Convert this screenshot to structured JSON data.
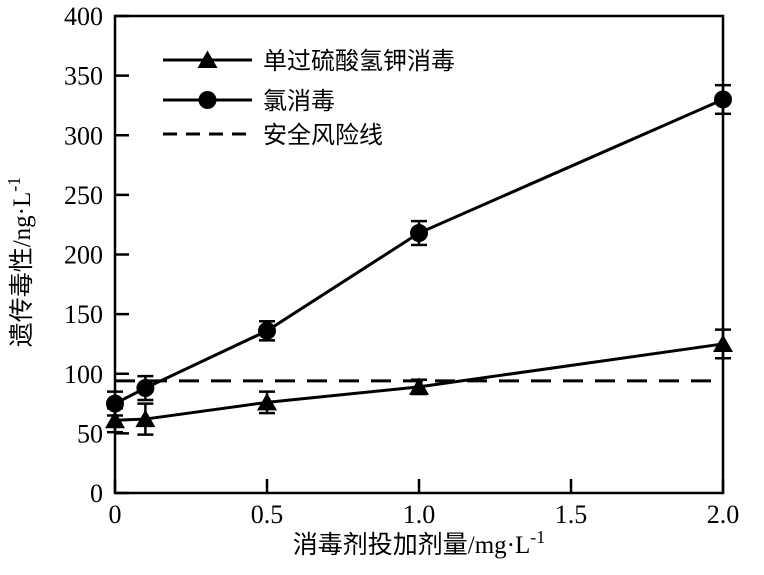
{
  "chart_data": {
    "type": "line",
    "title": "",
    "xlabel": {
      "text": "消毒剂投加剂量/mg·L",
      "superscript": "-1"
    },
    "ylabel": {
      "text": "遗传毒性/ng·L",
      "superscript": "-1"
    },
    "xlim": [
      0,
      2
    ],
    "ylim": [
      0,
      400
    ],
    "xticks": [
      {
        "value": 0,
        "label": "0"
      },
      {
        "value": 0.5,
        "label": "0.5"
      },
      {
        "value": 1.0,
        "label": "1.0"
      },
      {
        "value": 1.5,
        "label": "1.5"
      },
      {
        "value": 2.0,
        "label": "2.0"
      }
    ],
    "yticks": [
      {
        "value": 0,
        "label": "0"
      },
      {
        "value": 50,
        "label": "50"
      },
      {
        "value": 100,
        "label": "100"
      },
      {
        "value": 150,
        "label": "150"
      },
      {
        "value": 200,
        "label": "200"
      },
      {
        "value": 250,
        "label": "250"
      },
      {
        "value": 300,
        "label": "300"
      },
      {
        "value": 350,
        "label": "350"
      },
      {
        "value": 400,
        "label": "400"
      }
    ],
    "x": [
      0,
      0.1,
      0.5,
      1.0,
      2.0
    ],
    "series": [
      {
        "name": "单过硫酸氢钾消毒",
        "marker": "triangle",
        "line": "solid",
        "color": "#000000",
        "values": [
          61,
          62,
          76,
          89,
          125
        ],
        "errors": [
          10,
          13,
          9,
          6,
          12
        ]
      },
      {
        "name": "氯消毒",
        "marker": "circle",
        "line": "solid",
        "color": "#000000",
        "values": [
          75,
          88,
          136,
          218,
          330
        ],
        "errors": [
          10,
          10,
          8,
          10,
          12
        ]
      }
    ],
    "reference_line": {
      "name": "安全风险线",
      "value": 94,
      "style": "dashed",
      "color": "#000000"
    },
    "legend": {
      "position": "top-left",
      "items": [
        {
          "label": "单过硫酸氢钾消毒",
          "marker": "triangle",
          "line": "solid"
        },
        {
          "label": "氯消毒",
          "marker": "circle",
          "line": "solid"
        },
        {
          "label": "安全风险线",
          "marker": "none",
          "line": "dashed"
        }
      ]
    },
    "grid": false,
    "axis_color": "#000000",
    "background": "#ffffff"
  }
}
